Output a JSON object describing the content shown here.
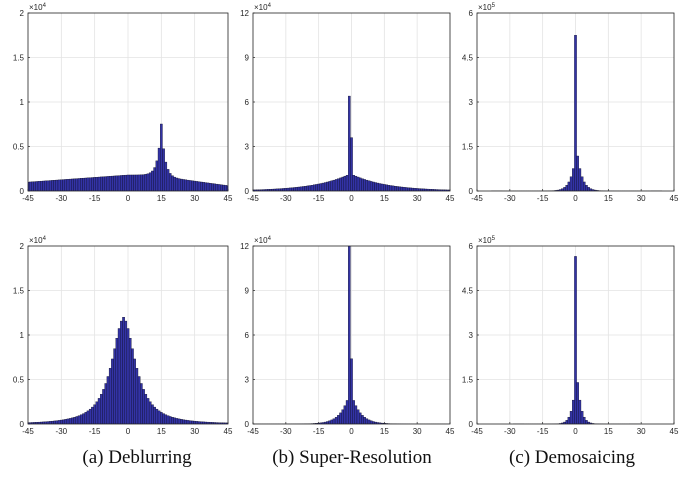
{
  "colors": {
    "bar_fill": "#3333a6",
    "bar_edge": "#0a0a20",
    "grid": "#e3e3e3",
    "axis": "#262626"
  },
  "captions": [
    "(a) Deblurring",
    "(b) Super-Resolution",
    "(c) Demosaicing"
  ],
  "chart_data": [
    {
      "type": "bar",
      "id": "deblur-top",
      "xlim": [
        -45,
        45
      ],
      "ylim": [
        0,
        20000
      ],
      "exponent_label": "×10^4",
      "xticks": [
        "-45",
        "-30",
        "-15",
        "0",
        "15",
        "30",
        "45"
      ],
      "yticks": [
        "0",
        "0.5",
        "1",
        "1.5",
        "2"
      ],
      "grid": true,
      "shape": "ramp-peak",
      "params": {
        "peak_x": 15,
        "peak_value": 7700,
        "left_start": 1000,
        "plateau": 1800,
        "right_tail": 600
      }
    },
    {
      "type": "bar",
      "id": "sr-top",
      "xlim": [
        -45,
        45
      ],
      "ylim": [
        0,
        120000
      ],
      "exponent_label": "×10^4",
      "xticks": [
        "-45",
        "-30",
        "-15",
        "0",
        "15",
        "30",
        "45"
      ],
      "yticks": [
        "0",
        "3",
        "6",
        "9",
        "12"
      ],
      "grid": true,
      "shape": "laplace",
      "params": {
        "peak_x": -1,
        "peak_value": 64000,
        "second_value": 36000,
        "base": 11000,
        "scale": 16
      }
    },
    {
      "type": "bar",
      "id": "demosaic-top",
      "xlim": [
        -45,
        45
      ],
      "ylim": [
        0,
        600000
      ],
      "exponent_label": "×10^5",
      "xticks": [
        "-45",
        "-30",
        "-15",
        "0",
        "15",
        "30",
        "45"
      ],
      "yticks": [
        "0",
        "1.5",
        "3",
        "4.5",
        "6"
      ],
      "grid": true,
      "shape": "laplace",
      "params": {
        "peak_x": 0,
        "peak_value": 525000,
        "second_value": 118000,
        "base": 95000,
        "scale": 2.2
      }
    },
    {
      "type": "bar",
      "id": "deblur-bottom",
      "xlim": [
        -45,
        45
      ],
      "ylim": [
        0,
        20000
      ],
      "exponent_label": "×10^4",
      "xticks": [
        "-45",
        "-30",
        "-15",
        "0",
        "15",
        "30",
        "45"
      ],
      "yticks": [
        "0",
        "0.5",
        "1",
        "1.5",
        "2"
      ],
      "grid": true,
      "shape": "bell",
      "params": {
        "peak_x": -2,
        "peak_value": 12000,
        "scale": 7
      }
    },
    {
      "type": "bar",
      "id": "sr-bottom",
      "xlim": [
        -45,
        45
      ],
      "ylim": [
        0,
        120000
      ],
      "exponent_label": "×10^4",
      "xticks": [
        "-45",
        "-30",
        "-15",
        "0",
        "15",
        "30",
        "45"
      ],
      "yticks": [
        "0",
        "3",
        "6",
        "9",
        "12"
      ],
      "grid": true,
      "shape": "laplace",
      "params": {
        "peak_x": -1,
        "peak_value": 120000,
        "second_value": 44000,
        "base": 18000,
        "scale": 4
      }
    },
    {
      "type": "bar",
      "id": "demosaic-bottom",
      "xlim": [
        -45,
        45
      ],
      "ylim": [
        0,
        600000
      ],
      "exponent_label": "×10^5",
      "xticks": [
        "-45",
        "-30",
        "-15",
        "0",
        "15",
        "30",
        "45"
      ],
      "yticks": [
        "0",
        "1.5",
        "3",
        "4.5",
        "6"
      ],
      "grid": true,
      "shape": "laplace",
      "params": {
        "peak_x": 0,
        "peak_value": 565000,
        "second_value": 140000,
        "base": 110000,
        "scale": 1.6
      }
    }
  ]
}
